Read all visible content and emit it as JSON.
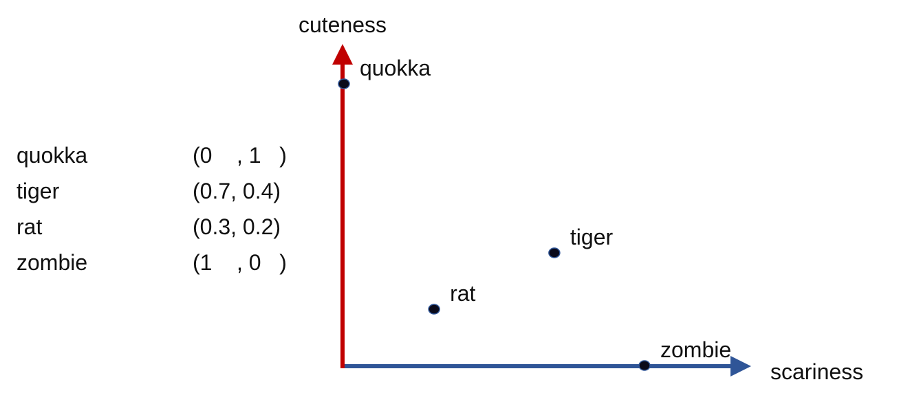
{
  "axes": {
    "x_label": "scariness",
    "y_label": "cuteness",
    "x_color": "#2f5597",
    "y_color": "#c00000"
  },
  "point_color": "#0a0a1a",
  "points": [
    {
      "label": "quokka",
      "x": 0,
      "y": 1
    },
    {
      "label": "tiger",
      "x": 0.7,
      "y": 0.4
    },
    {
      "label": "rat",
      "x": 0.3,
      "y": 0.2
    },
    {
      "label": "zombie",
      "x": 1,
      "y": 0
    }
  ],
  "table": [
    {
      "name": "quokka",
      "coord": "(0    , 1   )"
    },
    {
      "name": "tiger",
      "coord": "(0.7, 0.4)"
    },
    {
      "name": "rat",
      "coord": "(0.3, 0.2)"
    },
    {
      "name": "zombie",
      "coord": "(1    , 0   )"
    }
  ]
}
